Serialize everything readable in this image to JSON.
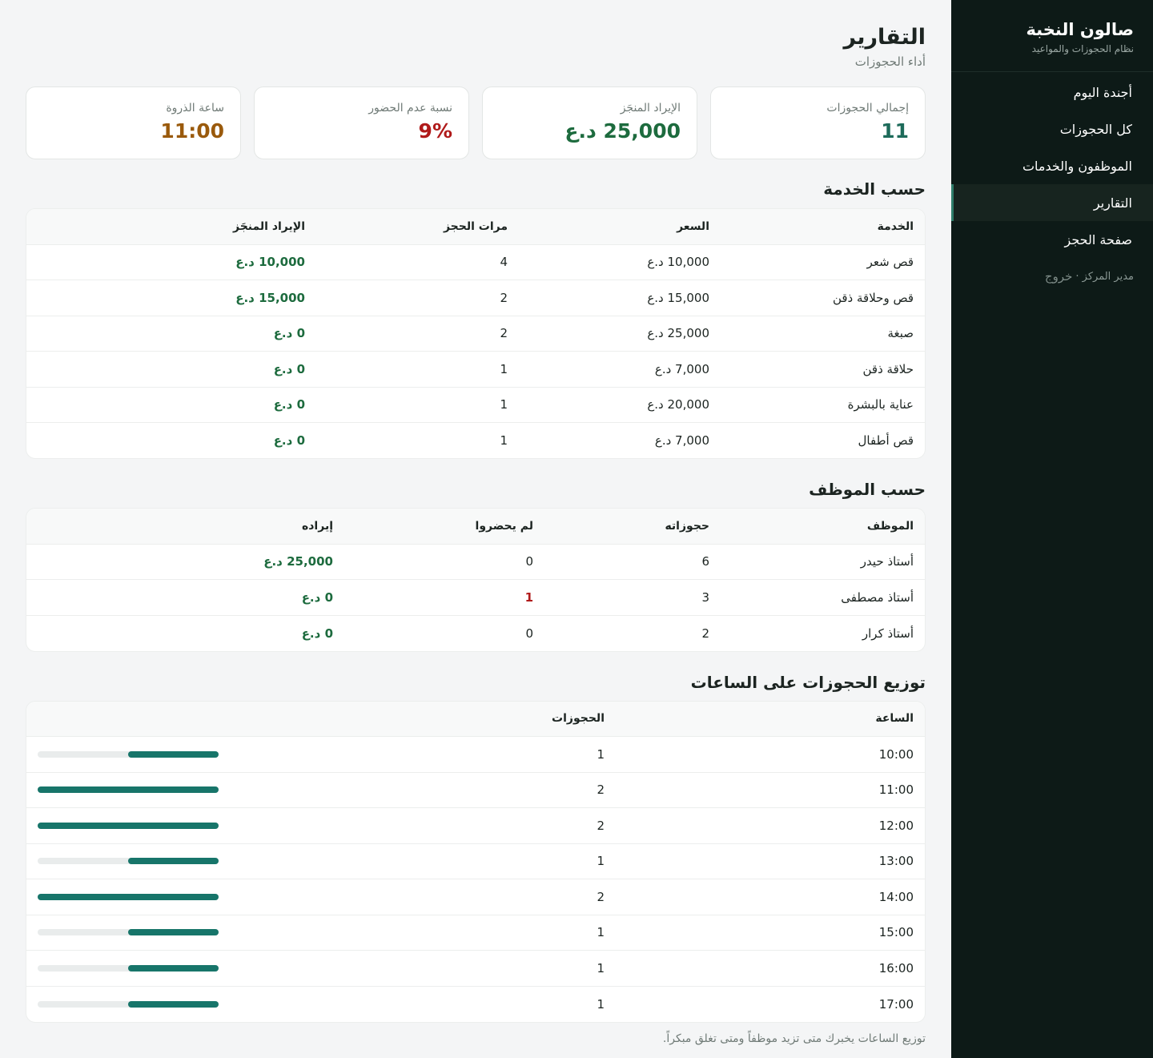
{
  "app": {
    "name": "صالون النخبة",
    "subtitle": "نظام الحجوزات والمواعيد"
  },
  "nav": {
    "items": [
      {
        "label": "أجندة اليوم",
        "active": false
      },
      {
        "label": "كل الحجوزات",
        "active": false
      },
      {
        "label": "الموظفون والخدمات",
        "active": false
      },
      {
        "label": "التقارير",
        "active": true
      },
      {
        "label": "صفحة الحجز",
        "active": false
      }
    ],
    "user_role": "مدير المركز ·",
    "logout_label": "خروج"
  },
  "page": {
    "title": "التقارير",
    "subtitle": "أداء الحجوزات"
  },
  "kpis": [
    {
      "label": "إجمالي الحجوزات",
      "value": "11",
      "color": "#1d6b5a"
    },
    {
      "label": "الإيراد المنجَز",
      "value": "25,000 د.ع",
      "color": "#1d6b3e"
    },
    {
      "label": "نسبة عدم الحضور",
      "value": "9%",
      "color": "#b01a1a"
    },
    {
      "label": "ساعة الذروة",
      "value": "11:00",
      "color": "#9a5a0c"
    }
  ],
  "services": {
    "title": "حسب الخدمة",
    "headers": [
      "الخدمة",
      "السعر",
      "مرات الحجز",
      "الإيراد المنجَز"
    ],
    "rows": [
      {
        "name": "قص شعر",
        "price": "10,000 د.ع",
        "count": "4",
        "revenue": "10,000 د.ع"
      },
      {
        "name": "قص وحلاقة ذقن",
        "price": "15,000 د.ع",
        "count": "2",
        "revenue": "15,000 د.ع"
      },
      {
        "name": "صبغة",
        "price": "25,000 د.ع",
        "count": "2",
        "revenue": "0 د.ع"
      },
      {
        "name": "حلاقة ذقن",
        "price": "7,000 د.ع",
        "count": "1",
        "revenue": "0 د.ع"
      },
      {
        "name": "عناية بالبشرة",
        "price": "20,000 د.ع",
        "count": "1",
        "revenue": "0 د.ع"
      },
      {
        "name": "قص أطفال",
        "price": "7,000 د.ع",
        "count": "1",
        "revenue": "0 د.ع"
      }
    ]
  },
  "staff": {
    "title": "حسب الموظف",
    "headers": [
      "الموظف",
      "حجوزاته",
      "لم يحضروا",
      "إيراده"
    ],
    "rows": [
      {
        "name": "أستاذ حيدر",
        "bookings": "6",
        "noshow": "0",
        "revenue": "25,000 د.ع"
      },
      {
        "name": "أستاذ مصطفى",
        "bookings": "3",
        "noshow": "1",
        "revenue": "0 د.ع"
      },
      {
        "name": "أستاذ كرار",
        "bookings": "2",
        "noshow": "0",
        "revenue": "0 د.ع"
      }
    ]
  },
  "hours": {
    "title": "توزيع الحجوزات على الساعات",
    "headers": [
      "الساعة",
      "الحجوزات"
    ],
    "max": 2,
    "rows": [
      {
        "hour": "10:00",
        "count": 1
      },
      {
        "hour": "11:00",
        "count": 2
      },
      {
        "hour": "12:00",
        "count": 2
      },
      {
        "hour": "13:00",
        "count": 1
      },
      {
        "hour": "14:00",
        "count": 2
      },
      {
        "hour": "15:00",
        "count": 1
      },
      {
        "hour": "16:00",
        "count": 1
      },
      {
        "hour": "17:00",
        "count": 1
      }
    ],
    "note": "توزيع الساعات يخبرك متى تزيد موظفاً ومتى تغلق مبكراً."
  }
}
